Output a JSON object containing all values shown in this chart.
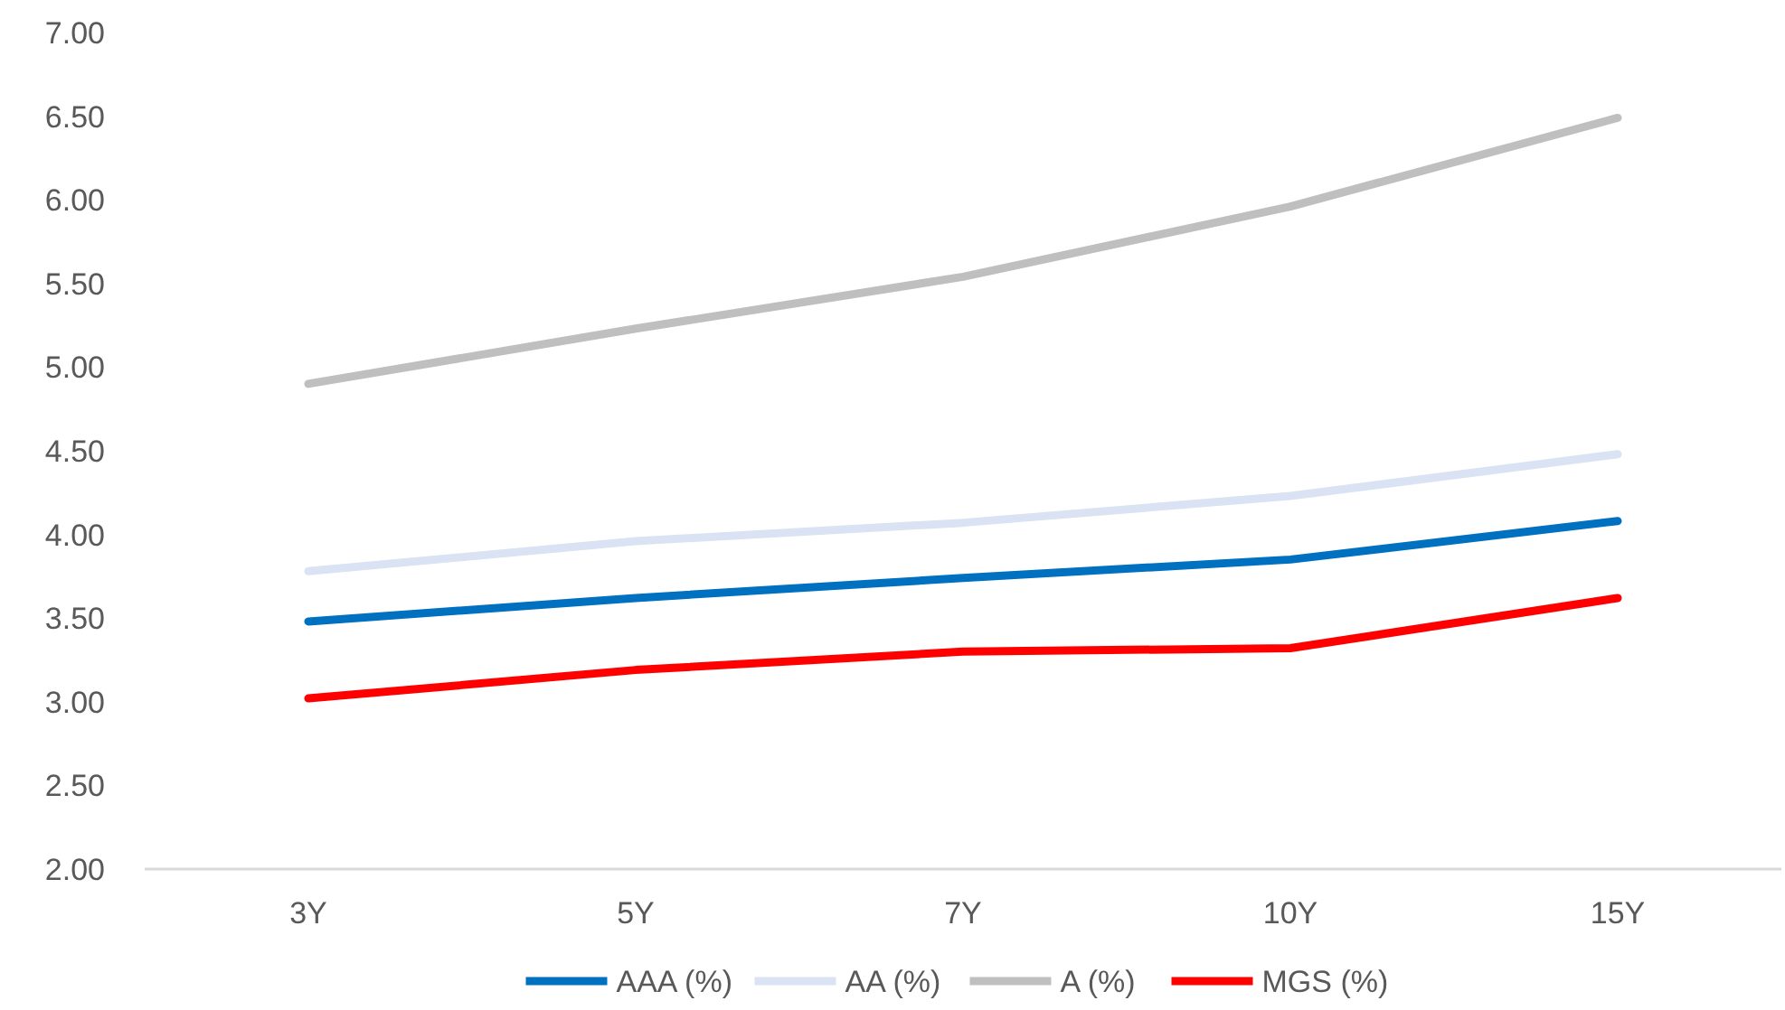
{
  "chart_data": {
    "type": "line",
    "categories": [
      "3Y",
      "5Y",
      "7Y",
      "10Y",
      "15Y"
    ],
    "series": [
      {
        "name": "AAA (%)",
        "color": "#0070c0",
        "values": [
          3.48,
          3.62,
          3.74,
          3.85,
          4.08
        ]
      },
      {
        "name": "AA (%)",
        "color": "#dae3f3",
        "values": [
          3.78,
          3.96,
          4.07,
          4.23,
          4.48
        ]
      },
      {
        "name": "A (%)",
        "color": "#bfbfbf",
        "values": [
          4.9,
          5.23,
          5.54,
          5.96,
          6.49
        ]
      },
      {
        "name": "MGS (%)",
        "color": "#ff0000",
        "values": [
          3.02,
          3.19,
          3.3,
          3.32,
          3.62
        ]
      }
    ],
    "ylim": [
      2,
      7
    ],
    "yticks": [
      {
        "value": 2,
        "label": "2.00"
      },
      {
        "value": 2.5,
        "label": "2.50"
      },
      {
        "value": 3,
        "label": "3.00"
      },
      {
        "value": 3.5,
        "label": "3.50"
      },
      {
        "value": 4,
        "label": "4.00"
      },
      {
        "value": 4.5,
        "label": "4.50"
      },
      {
        "value": 5,
        "label": "5.00"
      },
      {
        "value": 5.5,
        "label": "5.50"
      },
      {
        "value": 6,
        "label": "6.00"
      },
      {
        "value": 6.5,
        "label": "6.50"
      },
      {
        "value": 7,
        "label": "7.00"
      }
    ],
    "grid": false,
    "legend": "bottom",
    "marker": "none",
    "line_style": "solid"
  }
}
